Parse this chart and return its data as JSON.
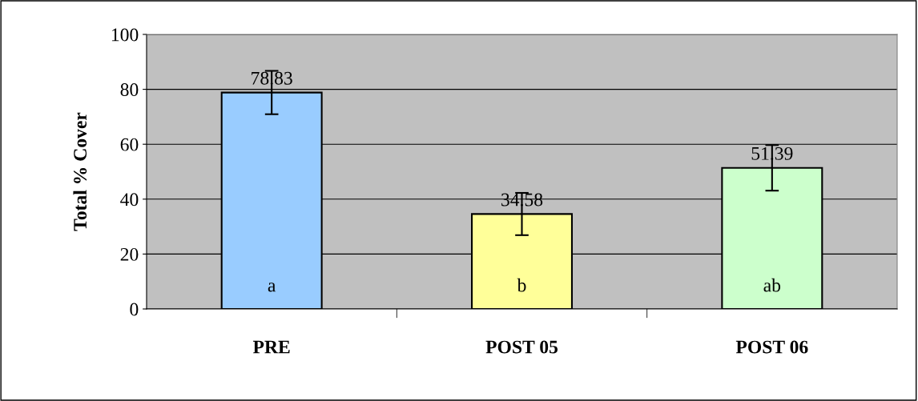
{
  "chart_data": {
    "type": "bar",
    "ylabel": "Total % Cover",
    "categories": [
      "PRE",
      "POST 05",
      "POST 06"
    ],
    "values": [
      78.83,
      34.58,
      51.39
    ],
    "colors": [
      "#99ccff",
      "#ffff99",
      "#ccffcc"
    ],
    "errors": [
      7.9,
      7.7,
      8.3
    ],
    "data_labels": true,
    "ylim": [
      0,
      100
    ],
    "yticks": [
      0,
      20,
      40,
      60,
      80,
      100
    ],
    "grid": "y",
    "annotations": [
      "a",
      "b",
      "ab"
    ]
  }
}
